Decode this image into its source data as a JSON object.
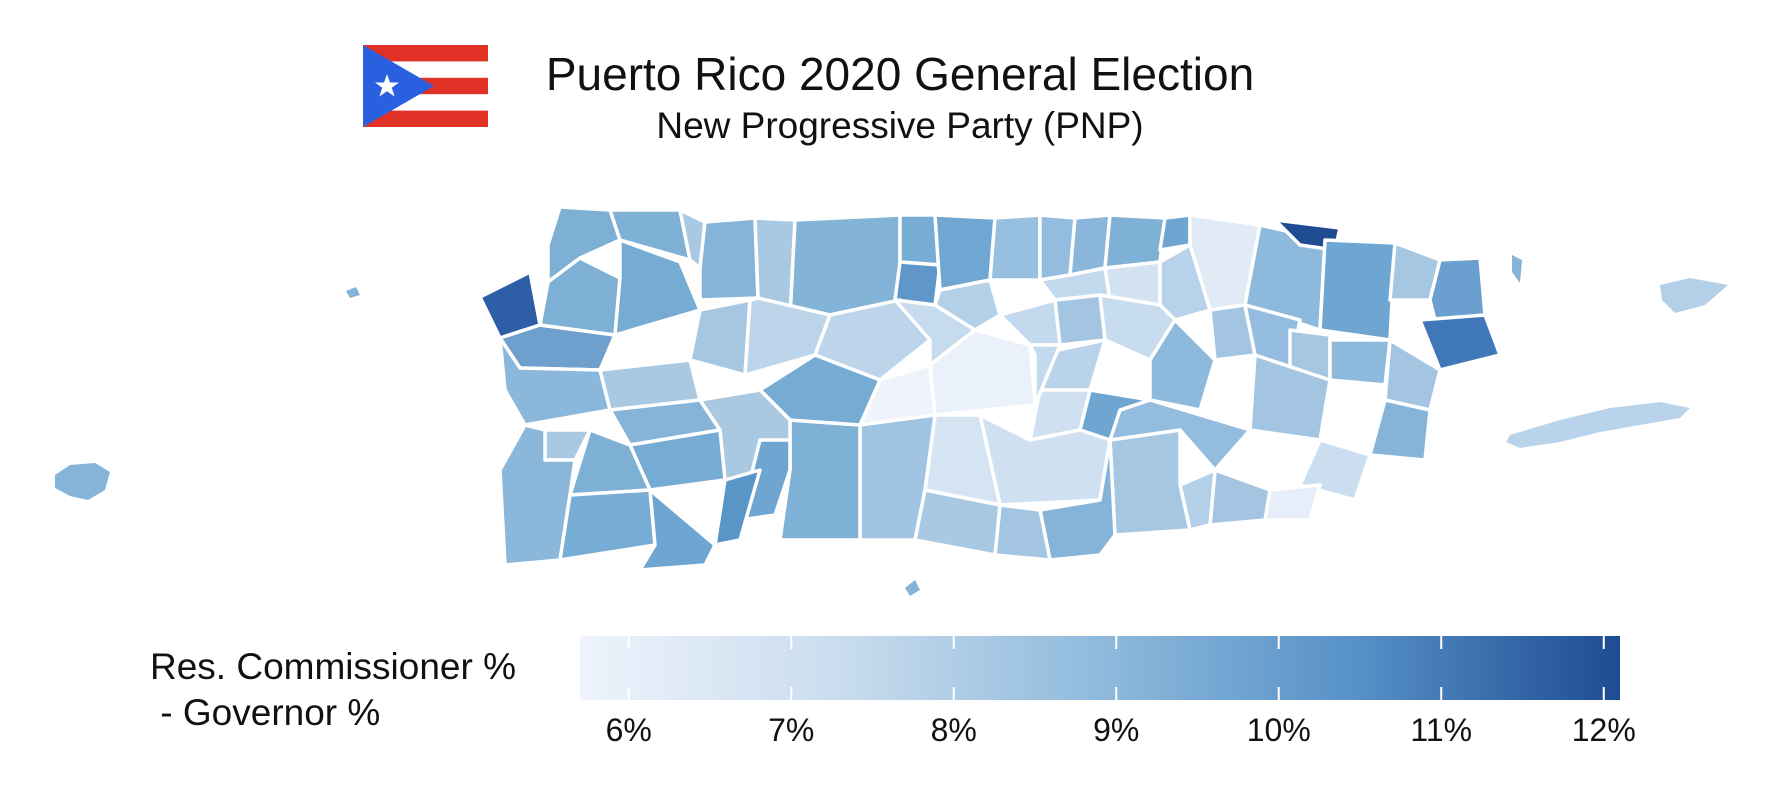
{
  "header": {
    "title": "Puerto Rico 2020 General Election",
    "subtitle": "New Progressive Party (PNP)"
  },
  "legend": {
    "title": "Res. Commissioner %\n - Governor %",
    "min": 5.7,
    "max": 12.1,
    "color_low": "#eef3fc",
    "color_high": "#1f4b93",
    "ticks": [
      {
        "value": 6,
        "label": "6%"
      },
      {
        "value": 7,
        "label": "7%"
      },
      {
        "value": 8,
        "label": "8%"
      },
      {
        "value": 9,
        "label": "9%"
      },
      {
        "value": 10,
        "label": "10%"
      },
      {
        "value": 11,
        "label": "11%"
      },
      {
        "value": 12,
        "label": "12%"
      }
    ]
  },
  "map": {
    "outline_color": "#ffffff",
    "flag_colors": {
      "red": "#e03127",
      "white": "#ffffff",
      "blue": "#2a60e0"
    }
  }
}
